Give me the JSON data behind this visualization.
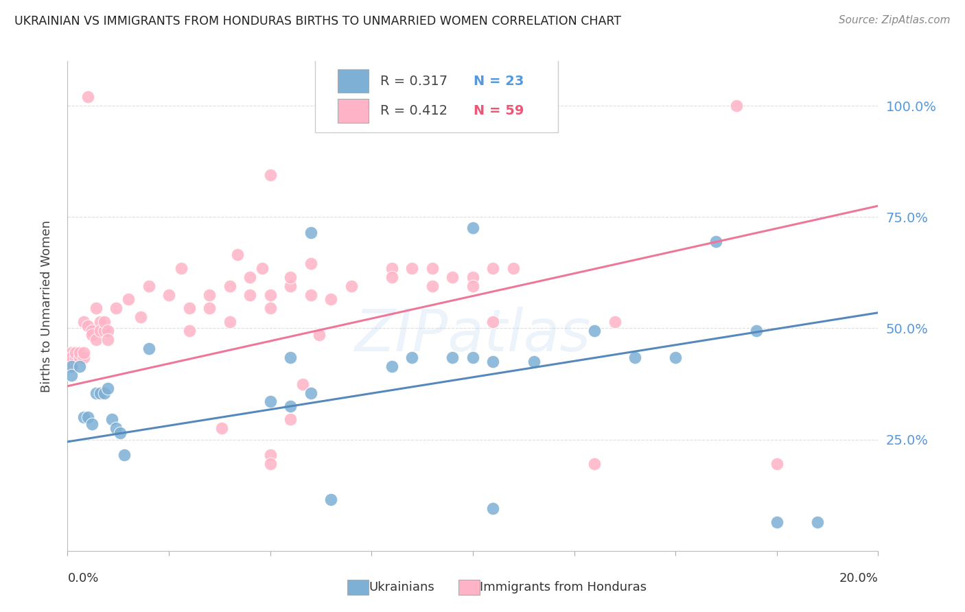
{
  "title": "UKRAINIAN VS IMMIGRANTS FROM HONDURAS BIRTHS TO UNMARRIED WOMEN CORRELATION CHART",
  "source": "Source: ZipAtlas.com",
  "ylabel": "Births to Unmarried Women",
  "ylabel_tick_vals": [
    0.25,
    0.5,
    0.75,
    1.0
  ],
  "ylabel_tick_labels": [
    "25.0%",
    "50.0%",
    "75.0%",
    "100.0%"
  ],
  "xlim": [
    0.0,
    0.2
  ],
  "ylim": [
    0.0,
    1.1
  ],
  "bg_color": "#ffffff",
  "grid_color": "#dddddd",
  "ukrainian_color": "#7EB0D5",
  "honduras_color": "#FFB3C6",
  "trendline_ukrainian_color": "#5588BB",
  "trendline_honduras_color": "#EE7799",
  "watermark": "ZIPatlas",
  "ukr_trend_x": [
    0.0,
    0.2
  ],
  "ukr_trend_y": [
    0.245,
    0.535
  ],
  "hon_trend_x": [
    0.0,
    0.2
  ],
  "hon_trend_y": [
    0.37,
    0.775
  ],
  "ukrainian_points": [
    [
      0.001,
      0.415
    ],
    [
      0.001,
      0.395
    ],
    [
      0.003,
      0.415
    ],
    [
      0.004,
      0.3
    ],
    [
      0.005,
      0.3
    ],
    [
      0.006,
      0.285
    ],
    [
      0.007,
      0.355
    ],
    [
      0.008,
      0.355
    ],
    [
      0.009,
      0.355
    ],
    [
      0.01,
      0.365
    ],
    [
      0.011,
      0.295
    ],
    [
      0.012,
      0.275
    ],
    [
      0.013,
      0.265
    ],
    [
      0.014,
      0.215
    ],
    [
      0.02,
      0.455
    ],
    [
      0.05,
      0.335
    ],
    [
      0.055,
      0.435
    ],
    [
      0.055,
      0.325
    ],
    [
      0.06,
      0.355
    ],
    [
      0.06,
      0.715
    ],
    [
      0.065,
      0.115
    ],
    [
      0.08,
      0.415
    ],
    [
      0.085,
      0.435
    ],
    [
      0.095,
      0.435
    ],
    [
      0.1,
      0.435
    ],
    [
      0.1,
      0.725
    ],
    [
      0.105,
      0.425
    ],
    [
      0.105,
      0.095
    ],
    [
      0.115,
      0.425
    ],
    [
      0.13,
      0.495
    ],
    [
      0.14,
      0.435
    ],
    [
      0.15,
      0.435
    ],
    [
      0.16,
      0.695
    ],
    [
      0.17,
      0.495
    ],
    [
      0.175,
      0.065
    ],
    [
      0.185,
      0.065
    ]
  ],
  "honduras_points": [
    [
      0.001,
      0.425
    ],
    [
      0.001,
      0.435
    ],
    [
      0.001,
      0.445
    ],
    [
      0.001,
      0.415
    ],
    [
      0.001,
      0.425
    ],
    [
      0.001,
      0.435
    ],
    [
      0.002,
      0.435
    ],
    [
      0.002,
      0.445
    ],
    [
      0.003,
      0.435
    ],
    [
      0.003,
      0.445
    ],
    [
      0.004,
      0.435
    ],
    [
      0.004,
      0.445
    ],
    [
      0.004,
      0.515
    ],
    [
      0.005,
      0.505
    ],
    [
      0.005,
      1.02
    ],
    [
      0.006,
      0.495
    ],
    [
      0.006,
      0.485
    ],
    [
      0.007,
      0.545
    ],
    [
      0.007,
      0.475
    ],
    [
      0.008,
      0.515
    ],
    [
      0.008,
      0.495
    ],
    [
      0.009,
      0.495
    ],
    [
      0.009,
      0.515
    ],
    [
      0.01,
      0.495
    ],
    [
      0.01,
      0.475
    ],
    [
      0.012,
      0.545
    ],
    [
      0.015,
      0.565
    ],
    [
      0.018,
      0.525
    ],
    [
      0.02,
      0.595
    ],
    [
      0.025,
      0.575
    ],
    [
      0.028,
      0.635
    ],
    [
      0.03,
      0.545
    ],
    [
      0.03,
      0.495
    ],
    [
      0.035,
      0.575
    ],
    [
      0.035,
      0.545
    ],
    [
      0.038,
      0.275
    ],
    [
      0.04,
      0.595
    ],
    [
      0.04,
      0.515
    ],
    [
      0.042,
      0.665
    ],
    [
      0.045,
      0.615
    ],
    [
      0.045,
      0.575
    ],
    [
      0.048,
      0.635
    ],
    [
      0.05,
      0.575
    ],
    [
      0.05,
      0.545
    ],
    [
      0.05,
      0.845
    ],
    [
      0.05,
      0.215
    ],
    [
      0.05,
      0.195
    ],
    [
      0.055,
      0.595
    ],
    [
      0.055,
      0.615
    ],
    [
      0.055,
      0.295
    ],
    [
      0.058,
      0.375
    ],
    [
      0.06,
      0.575
    ],
    [
      0.06,
      0.645
    ],
    [
      0.062,
      0.485
    ],
    [
      0.065,
      0.565
    ],
    [
      0.07,
      0.595
    ],
    [
      0.08,
      0.635
    ],
    [
      0.08,
      0.615
    ],
    [
      0.085,
      0.635
    ],
    [
      0.09,
      0.635
    ],
    [
      0.09,
      0.595
    ],
    [
      0.095,
      0.615
    ],
    [
      0.1,
      0.615
    ],
    [
      0.1,
      0.595
    ],
    [
      0.105,
      0.515
    ],
    [
      0.105,
      0.635
    ],
    [
      0.11,
      0.635
    ],
    [
      0.13,
      0.195
    ],
    [
      0.135,
      0.515
    ],
    [
      0.165,
      1.0
    ],
    [
      0.175,
      0.195
    ]
  ]
}
